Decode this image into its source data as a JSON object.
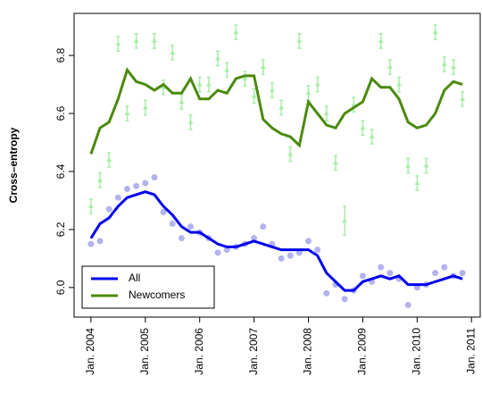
{
  "chart_data": {
    "type": "line",
    "y_label": "Cross–entropy",
    "x": [
      2004,
      2004.167,
      2004.333,
      2004.5,
      2004.667,
      2004.833,
      2005,
      2005.167,
      2005.333,
      2005.5,
      2005.667,
      2005.833,
      2006,
      2006.167,
      2006.333,
      2006.5,
      2006.667,
      2006.833,
      2007,
      2007.167,
      2007.333,
      2007.5,
      2007.667,
      2007.833,
      2008,
      2008.167,
      2008.333,
      2008.5,
      2008.667,
      2008.833,
      2009,
      2009.167,
      2009.333,
      2009.5,
      2009.667,
      2009.833,
      2010,
      2010.167,
      2010.333,
      2010.5,
      2010.667,
      2010.833
    ],
    "series": [
      {
        "name": "All",
        "color": "#0000ee",
        "point_color": "#b3b3f0",
        "values": [
          6.17,
          6.22,
          6.24,
          6.28,
          6.31,
          6.32,
          6.33,
          6.32,
          6.28,
          6.25,
          6.21,
          6.19,
          6.19,
          6.17,
          6.15,
          6.14,
          6.14,
          6.15,
          6.16,
          6.15,
          6.14,
          6.13,
          6.13,
          6.13,
          6.13,
          6.11,
          6.05,
          6.02,
          5.99,
          5.99,
          6.02,
          6.03,
          6.04,
          6.03,
          6.04,
          6.01,
          6.01,
          6.01,
          6.02,
          6.03,
          6.04,
          6.03
        ],
        "points": [
          6.15,
          6.16,
          6.27,
          6.31,
          6.34,
          6.35,
          6.36,
          6.38,
          6.26,
          6.22,
          6.17,
          6.21,
          6.19,
          6.17,
          6.12,
          6.13,
          6.14,
          6.15,
          6.17,
          6.21,
          6.15,
          6.1,
          6.11,
          6.12,
          6.16,
          6.13,
          5.98,
          6.01,
          5.96,
          5.99,
          6.04,
          6.02,
          6.07,
          6.05,
          6.03,
          5.94,
          6,
          6.01,
          6.05,
          6.07,
          6.04,
          6.05
        ]
      },
      {
        "name": "Newcomers",
        "color": "#4a8a0e",
        "point_color": "#a6eea6",
        "values": [
          6.46,
          6.55,
          6.57,
          6.65,
          6.75,
          6.71,
          6.7,
          6.68,
          6.7,
          6.67,
          6.67,
          6.72,
          6.65,
          6.65,
          6.68,
          6.67,
          6.72,
          6.73,
          6.73,
          6.58,
          6.55,
          6.53,
          6.52,
          6.49,
          6.64,
          6.6,
          6.56,
          6.55,
          6.6,
          6.62,
          6.64,
          6.72,
          6.69,
          6.69,
          6.65,
          6.57,
          6.55,
          6.56,
          6.6,
          6.68,
          6.71,
          6.7
        ],
        "points": [
          6.28,
          6.37,
          6.44,
          6.84,
          6.6,
          6.85,
          6.62,
          6.85,
          6.69,
          6.81,
          6.64,
          6.57,
          6.7,
          6.7,
          6.79,
          6.75,
          6.88,
          6.72,
          6.66,
          6.76,
          6.68,
          6.62,
          6.46,
          6.85,
          6.67,
          6.7,
          6.6,
          6.43,
          6.23,
          6.63,
          6.55,
          6.52,
          6.85,
          6.76,
          6.7,
          6.42,
          6.36,
          6.42,
          6.88,
          6.77,
          6.76,
          6.65
        ],
        "errors": [
          0.025,
          0.025,
          0.025,
          0.025,
          0.025,
          0.025,
          0.025,
          0.025,
          0.025,
          0.025,
          0.025,
          0.025,
          0.025,
          0.025,
          0.025,
          0.025,
          0.025,
          0.025,
          0.025,
          0.025,
          0.025,
          0.025,
          0.025,
          0.025,
          0.025,
          0.025,
          0.025,
          0.025,
          0.05,
          0.025,
          0.025,
          0.025,
          0.025,
          0.025,
          0.025,
          0.025,
          0.025,
          0.025,
          0.025,
          0.025,
          0.025,
          0.025
        ]
      }
    ],
    "xlim": [
      2003.69,
      2011.16
    ],
    "ylim": [
      5.898,
      6.945
    ],
    "xticks": [
      {
        "value": 2004,
        "label": "Jan. 2004"
      },
      {
        "value": 2005,
        "label": "Jan. 2005"
      },
      {
        "value": 2006,
        "label": "Jan. 2006"
      },
      {
        "value": 2007,
        "label": "Jan. 2007"
      },
      {
        "value": 2008,
        "label": "Jan. 2008"
      },
      {
        "value": 2009,
        "label": "Jan. 2009"
      },
      {
        "value": 2010,
        "label": "Jan. 2010"
      },
      {
        "value": 2011,
        "label": "Jan. 2011"
      }
    ],
    "yticks": [
      {
        "value": 6,
        "label": "6.0"
      },
      6.2,
      6.4,
      6.6,
      6.8
    ],
    "legend": "bottom-left"
  }
}
